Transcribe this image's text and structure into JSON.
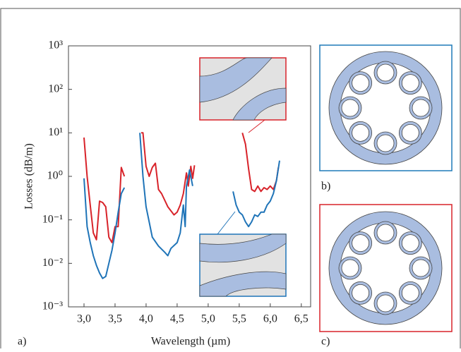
{
  "chart_data": {
    "type": "line",
    "log_y": true,
    "xlabel": "Wavelength (µm)",
    "ylabel": "Losses (dB/m)",
    "panel_label": "a)",
    "xlim": [
      2.75,
      6.65
    ],
    "ylim": [
      0.001,
      1000
    ],
    "xticks": [
      {
        "value": 3,
        "label": "3,0"
      },
      {
        "value": 3.5,
        "label": "3,5"
      },
      {
        "value": 4,
        "label": "4,0"
      },
      {
        "value": 4.5,
        "label": "4,5"
      },
      {
        "value": 5,
        "label": "5,0"
      },
      {
        "value": 5.5,
        "label": "5,5"
      },
      {
        "value": 6,
        "label": "6,0"
      },
      {
        "value": 6.5,
        "label": "6,5"
      }
    ],
    "yticks": [
      {
        "value": 1000,
        "label": "10³"
      },
      {
        "value": 100,
        "label": "10²"
      },
      {
        "value": 10,
        "label": "10¹"
      },
      {
        "value": 1,
        "label": "10⁰"
      },
      {
        "value": 0.1,
        "label": "10⁻¹"
      },
      {
        "value": 0.01,
        "label": "10⁻²"
      },
      {
        "value": 0.001,
        "label": "10⁻³"
      }
    ],
    "series": [
      {
        "color": "#d8232a",
        "x": [
          3.0,
          3.05,
          3.1,
          3.15,
          3.2,
          3.25,
          3.3,
          3.35,
          3.4,
          3.45,
          3.5,
          3.55,
          3.6,
          3.65,
          null,
          3.92,
          3.95,
          4.0,
          4.05,
          4.1,
          4.15,
          4.2,
          4.25,
          4.35,
          4.45,
          4.5,
          4.55,
          4.6,
          4.65,
          4.68,
          4.72,
          4.75,
          4.78,
          null,
          5.55,
          5.6,
          5.65,
          5.7,
          5.75,
          5.8,
          5.85,
          5.9,
          5.95,
          6.0,
          6.05,
          6.1,
          6.13
        ],
        "values": [
          7.8,
          1.0,
          0.22,
          0.05,
          0.035,
          0.27,
          0.25,
          0.2,
          0.04,
          0.03,
          0.07,
          0.07,
          1.6,
          1.0,
          null,
          10,
          10,
          1.7,
          1.0,
          1.6,
          2,
          0.5,
          0.4,
          0.2,
          0.13,
          0.15,
          0.22,
          0.4,
          1.2,
          0.6,
          1.7,
          0.9,
          1.8,
          null,
          10,
          5.5,
          1.5,
          0.5,
          0.45,
          0.6,
          0.45,
          0.55,
          0.5,
          0.6,
          0.5,
          0.8,
          1.6
        ]
      },
      {
        "color": "#1f74b8",
        "x": [
          3.0,
          3.05,
          3.1,
          3.15,
          3.2,
          3.25,
          3.3,
          3.35,
          3.4,
          3.45,
          3.5,
          3.55,
          3.6,
          3.65,
          null,
          3.9,
          3.95,
          4.0,
          4.05,
          4.1,
          4.2,
          4.3,
          4.35,
          4.4,
          4.5,
          4.55,
          4.6,
          4.63,
          4.65,
          4.7,
          4.75,
          null,
          5.4,
          5.45,
          5.5,
          5.55,
          5.6,
          5.65,
          5.7,
          5.75,
          5.8,
          5.85,
          5.9,
          5.95,
          6.0,
          6.05,
          6.1,
          6.15
        ],
        "values": [
          0.9,
          0.07,
          0.03,
          0.015,
          0.009,
          0.006,
          0.0045,
          0.005,
          0.01,
          0.02,
          0.05,
          0.15,
          0.4,
          0.55,
          null,
          10,
          1,
          0.2,
          0.09,
          0.04,
          0.025,
          0.018,
          0.015,
          0.022,
          0.03,
          0.05,
          0.22,
          0.07,
          0.6,
          1.4,
          0.6,
          null,
          0.45,
          0.22,
          0.15,
          0.13,
          0.09,
          0.07,
          0.09,
          0.13,
          0.12,
          0.15,
          0.15,
          0.22,
          0.27,
          0.4,
          0.8,
          2.3
        ]
      }
    ]
  },
  "panels": {
    "b": "b)",
    "c": "c)"
  }
}
